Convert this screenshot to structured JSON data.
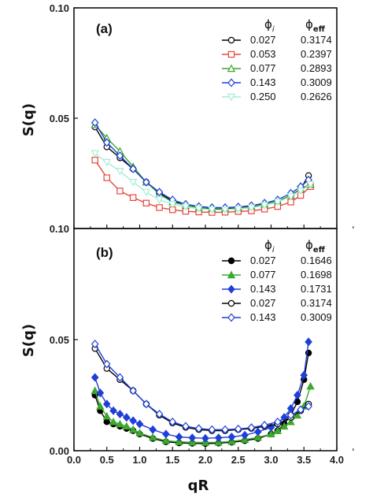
{
  "figure": {
    "xlabel": "qR",
    "ylabel": "S(q)"
  },
  "legend_headers": {
    "phi_i": "ϕ",
    "phi_i_sub": "i",
    "phi_eff": "ϕ",
    "phi_eff_sub": "eff"
  },
  "chart_data": [
    {
      "type": "line",
      "panel_label": "(a)",
      "xlabel": "",
      "ylabel": "S(q)",
      "xlim": [
        0.0,
        4.0
      ],
      "ylim": [
        0.0,
        0.1
      ],
      "x_ticks": [
        0.0,
        0.5,
        1.0,
        1.5,
        2.0,
        2.5,
        3.0,
        3.5,
        4.0
      ],
      "y_ticks": [
        {
          "value": 0.05,
          "label": "0.05"
        },
        {
          "value": 0.1,
          "label": "0.10"
        }
      ],
      "bottom_edge_label": "0.10",
      "legend_placement": "top-right",
      "series": [
        {
          "phi_i": "0.027",
          "phi_eff": "0.3174",
          "color": "#000000",
          "marker": "circle",
          "filled": false,
          "x": [
            0.32,
            0.5,
            0.7,
            0.9,
            1.1,
            1.3,
            1.5,
            1.7,
            1.9,
            2.1,
            2.3,
            2.5,
            2.7,
            2.9,
            3.1,
            3.3,
            3.45,
            3.57
          ],
          "y": [
            0.046,
            0.037,
            0.032,
            0.027,
            0.021,
            0.016,
            0.0125,
            0.0105,
            0.0095,
            0.009,
            0.009,
            0.0095,
            0.01,
            0.011,
            0.012,
            0.015,
            0.018,
            0.024
          ]
        },
        {
          "phi_i": "0.053",
          "phi_eff": "0.2397",
          "color": "#e8463c",
          "marker": "square",
          "filled": false,
          "x": [
            0.32,
            0.5,
            0.7,
            0.9,
            1.1,
            1.3,
            1.5,
            1.7,
            1.9,
            2.1,
            2.3,
            2.5,
            2.7,
            2.9,
            3.1,
            3.3,
            3.45,
            3.6
          ],
          "y": [
            0.031,
            0.023,
            0.017,
            0.014,
            0.0115,
            0.0095,
            0.0085,
            0.0078,
            0.0075,
            0.0073,
            0.0074,
            0.0077,
            0.008,
            0.0088,
            0.01,
            0.012,
            0.015,
            0.019
          ]
        },
        {
          "phi_i": "0.077",
          "phi_eff": "0.2893",
          "color": "#3ca82c",
          "marker": "triangle",
          "filled": false,
          "x": [
            0.32,
            0.5,
            0.7,
            0.9,
            1.1,
            1.3,
            1.5,
            1.7,
            1.9,
            2.1,
            2.3,
            2.5,
            2.7,
            2.9,
            3.1,
            3.3,
            3.45,
            3.6
          ],
          "y": [
            0.047,
            0.041,
            0.035,
            0.028,
            0.021,
            0.0155,
            0.012,
            0.0105,
            0.0095,
            0.0092,
            0.0092,
            0.0096,
            0.0102,
            0.011,
            0.0125,
            0.015,
            0.018,
            0.02
          ]
        },
        {
          "phi_i": "0.143",
          "phi_eff": "0.3009",
          "color": "#1f3fd8",
          "marker": "diamond",
          "filled": false,
          "x": [
            0.32,
            0.5,
            0.7,
            0.9,
            1.1,
            1.3,
            1.5,
            1.7,
            1.9,
            2.1,
            2.3,
            2.5,
            2.7,
            2.9,
            3.1,
            3.3,
            3.45,
            3.57
          ],
          "y": [
            0.048,
            0.039,
            0.033,
            0.027,
            0.021,
            0.0165,
            0.013,
            0.011,
            0.01,
            0.0095,
            0.0095,
            0.0098,
            0.0104,
            0.0115,
            0.013,
            0.016,
            0.019,
            0.022
          ]
        },
        {
          "phi_i": "0.250",
          "phi_eff": "0.2626",
          "color": "#a6ecd6",
          "marker": "triangle-down",
          "filled": false,
          "x": [
            0.32,
            0.5,
            0.7,
            0.9,
            1.1,
            1.3,
            1.5,
            1.7,
            1.9,
            2.1,
            2.3,
            2.5,
            2.7,
            2.9,
            3.1,
            3.3,
            3.45,
            3.6
          ],
          "y": [
            0.034,
            0.03,
            0.026,
            0.021,
            0.0165,
            0.013,
            0.011,
            0.0098,
            0.009,
            0.0085,
            0.0085,
            0.0088,
            0.0094,
            0.0105,
            0.012,
            0.0145,
            0.017,
            0.02
          ]
        }
      ]
    },
    {
      "type": "line",
      "panel_label": "(b)",
      "xlabel": "qR",
      "ylabel": "S(q)",
      "xlim": [
        0.0,
        4.0
      ],
      "ylim": [
        0.0,
        0.1
      ],
      "x_ticks": [
        0.0,
        0.5,
        1.0,
        1.5,
        2.0,
        2.5,
        3.0,
        3.5,
        4.0
      ],
      "y_ticks": [
        {
          "value": 0.0,
          "label": "0.00"
        },
        {
          "value": 0.05,
          "label": "0.05"
        }
      ],
      "legend_placement": "top-right",
      "series": [
        {
          "phi_i": "0.027",
          "phi_eff": "0.1646",
          "color": "#000000",
          "marker": "circle",
          "filled": true,
          "x": [
            0.32,
            0.4,
            0.5,
            0.6,
            0.7,
            0.8,
            0.9,
            1.0,
            1.2,
            1.4,
            1.6,
            1.8,
            2.0,
            2.2,
            2.4,
            2.6,
            2.8,
            3.0,
            3.1,
            3.2,
            3.3,
            3.4,
            3.5,
            3.57
          ],
          "y": [
            0.025,
            0.018,
            0.013,
            0.012,
            0.011,
            0.01,
            0.009,
            0.0075,
            0.0055,
            0.004,
            0.0035,
            0.0033,
            0.0032,
            0.0034,
            0.0038,
            0.0045,
            0.0055,
            0.0075,
            0.009,
            0.012,
            0.016,
            0.022,
            0.032,
            0.044
          ]
        },
        {
          "phi_i": "0.077",
          "phi_eff": "0.1698",
          "color": "#3ca82c",
          "marker": "triangle",
          "filled": true,
          "x": [
            0.32,
            0.4,
            0.5,
            0.6,
            0.7,
            0.8,
            0.9,
            1.0,
            1.2,
            1.4,
            1.6,
            1.8,
            2.0,
            2.2,
            2.4,
            2.6,
            2.8,
            3.0,
            3.1,
            3.2,
            3.3,
            3.4,
            3.5,
            3.6
          ],
          "y": [
            0.027,
            0.02,
            0.0155,
            0.013,
            0.012,
            0.011,
            0.0095,
            0.008,
            0.006,
            0.0045,
            0.004,
            0.0038,
            0.0037,
            0.0038,
            0.0042,
            0.005,
            0.006,
            0.0075,
            0.009,
            0.011,
            0.013,
            0.016,
            0.02,
            0.029
          ]
        },
        {
          "phi_i": "0.143",
          "phi_eff": "0.1731",
          "color": "#1f3fd8",
          "marker": "diamond",
          "filled": true,
          "x": [
            0.32,
            0.4,
            0.5,
            0.6,
            0.7,
            0.8,
            0.9,
            1.0,
            1.2,
            1.4,
            1.6,
            1.8,
            2.0,
            2.2,
            2.4,
            2.6,
            2.8,
            3.0,
            3.1,
            3.2,
            3.3,
            3.4,
            3.5,
            3.57
          ],
          "y": [
            0.033,
            0.026,
            0.021,
            0.018,
            0.0165,
            0.015,
            0.0135,
            0.012,
            0.0095,
            0.0075,
            0.0062,
            0.0058,
            0.0056,
            0.0058,
            0.0062,
            0.007,
            0.0085,
            0.0105,
            0.012,
            0.015,
            0.019,
            0.025,
            0.034,
            0.049
          ]
        },
        {
          "phi_i": "0.027",
          "phi_eff": "0.3174",
          "color": "#000000",
          "marker": "circle",
          "filled": false,
          "x": [
            0.32,
            0.5,
            0.7,
            0.9,
            1.1,
            1.3,
            1.5,
            1.7,
            1.9,
            2.1,
            2.3,
            2.5,
            2.7,
            2.9,
            3.1,
            3.3,
            3.45,
            3.57
          ],
          "y": [
            0.046,
            0.037,
            0.032,
            0.027,
            0.021,
            0.016,
            0.0125,
            0.0105,
            0.0095,
            0.009,
            0.009,
            0.0095,
            0.01,
            0.011,
            0.012,
            0.015,
            0.018,
            0.021
          ]
        },
        {
          "phi_i": "0.143",
          "phi_eff": "0.3009",
          "color": "#1f3fd8",
          "marker": "diamond",
          "filled": false,
          "x": [
            0.32,
            0.5,
            0.7,
            0.9,
            1.1,
            1.3,
            1.5,
            1.7,
            1.9,
            2.1,
            2.3,
            2.5,
            2.7,
            2.9,
            3.1,
            3.3,
            3.45,
            3.57
          ],
          "y": [
            0.048,
            0.039,
            0.033,
            0.027,
            0.021,
            0.0165,
            0.013,
            0.011,
            0.01,
            0.0095,
            0.0095,
            0.0098,
            0.0104,
            0.0115,
            0.013,
            0.016,
            0.0185,
            0.02
          ]
        }
      ]
    }
  ]
}
